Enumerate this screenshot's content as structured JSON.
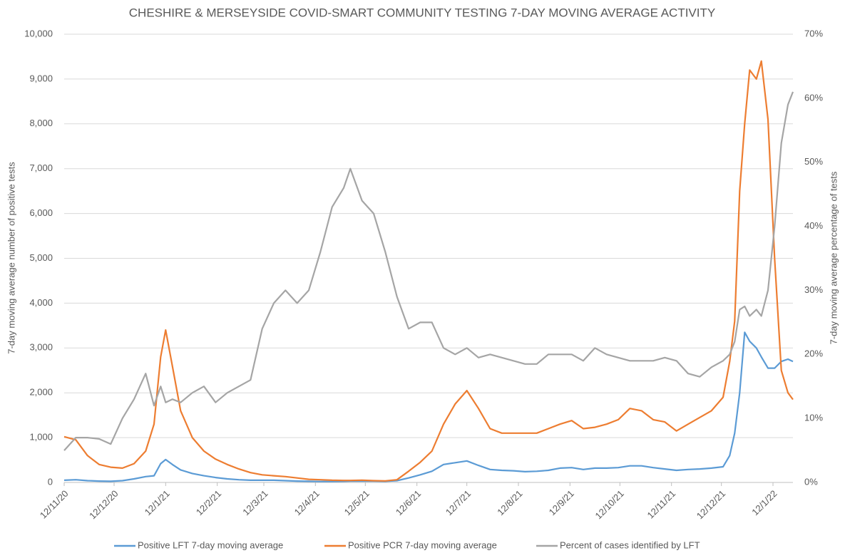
{
  "chart_data": {
    "type": "line",
    "title": "CHESHIRE & MERSEYSIDE COVID-SMART COMMUNITY TESTING 7-DAY MOVING AVERAGE ACTIVITY",
    "y_label": "7-day moving average number of positive tests",
    "y2_label": "7-day moving average percentage of tests",
    "x": [
      "12/11/20",
      "19/11/20",
      "26/11/20",
      "3/12/20",
      "10/12/20",
      "17/12/20",
      "24/12/20",
      "31/12/20",
      "5/1/21",
      "9/1/21",
      "12/1/21",
      "16/1/21",
      "21/1/21",
      "28/1/21",
      "4/2/21",
      "11/2/21",
      "18/2/21",
      "25/2/21",
      "4/3/21",
      "11/3/21",
      "18/3/21",
      "25/3/21",
      "1/4/21",
      "8/4/21",
      "15/4/21",
      "22/4/21",
      "29/4/21",
      "3/5/21",
      "10/5/21",
      "17/5/21",
      "24/5/21",
      "31/5/21",
      "7/6/21",
      "14/6/21",
      "21/6/21",
      "28/6/21",
      "5/7/21",
      "12/7/21",
      "19/7/21",
      "26/7/21",
      "2/8/21",
      "9/8/21",
      "16/8/21",
      "23/8/21",
      "30/8/21",
      "6/9/21",
      "13/9/21",
      "20/9/21",
      "27/9/21",
      "4/10/21",
      "11/10/21",
      "18/10/21",
      "25/10/21",
      "1/11/21",
      "8/11/21",
      "15/11/21",
      "22/11/21",
      "29/11/21",
      "6/12/21",
      "13/12/21",
      "17/12/21",
      "20/12/21",
      "23/12/21",
      "26/12/21",
      "29/12/21",
      "2/1/22",
      "5/1/22",
      "9/1/22",
      "13/1/22",
      "17/1/22",
      "21/1/22",
      "24/1/22"
    ],
    "xlim": [
      "12/11/20",
      "24/1/22"
    ],
    "xticks": [
      "12/11/20",
      "12/12/20",
      "12/1/21",
      "12/2/21",
      "12/3/21",
      "12/4/21",
      "12/5/21",
      "12/6/21",
      "12/7/21",
      "12/8/21",
      "12/9/21",
      "12/10/21",
      "12/11/21",
      "12/12/21",
      "12/1/22"
    ],
    "ylim": [
      0,
      10000
    ],
    "yticks": [
      0,
      {
        "value": 1000,
        "label": "1,000"
      },
      {
        "value": 2000,
        "label": "2,000"
      },
      {
        "value": 3000,
        "label": "3,000"
      },
      {
        "value": 4000,
        "label": "4,000"
      },
      {
        "value": 5000,
        "label": "5,000"
      },
      {
        "value": 6000,
        "label": "6,000"
      },
      {
        "value": 7000,
        "label": "7,000"
      },
      {
        "value": 8000,
        "label": "8,000"
      },
      {
        "value": 9000,
        "label": "9,000"
      },
      {
        "value": 10000,
        "label": "10,000"
      }
    ],
    "y2lim": [
      0,
      70
    ],
    "y2ticks": [
      {
        "value": 0,
        "label": "0%"
      },
      {
        "value": 10,
        "label": "10%"
      },
      {
        "value": 20,
        "label": "20%"
      },
      {
        "value": 30,
        "label": "30%"
      },
      {
        "value": 40,
        "label": "40%"
      },
      {
        "value": 50,
        "label": "50%"
      },
      {
        "value": 60,
        "label": "60%"
      },
      {
        "value": 70,
        "label": "70%"
      }
    ],
    "grid": true,
    "legend": "bottom",
    "series": [
      {
        "name": "Positive LFT 7-day moving average",
        "color": "#5b9bd5",
        "values": [
          50,
          60,
          40,
          30,
          25,
          40,
          80,
          130,
          150,
          420,
          510,
          400,
          280,
          200,
          150,
          110,
          80,
          60,
          50,
          50,
          50,
          40,
          30,
          25,
          20,
          20,
          25,
          30,
          30,
          30,
          25,
          40,
          100,
          170,
          250,
          400,
          440,
          480,
          380,
          290,
          270,
          260,
          240,
          250,
          270,
          320,
          330,
          290,
          320,
          320,
          330,
          370,
          370,
          330,
          300,
          270,
          290,
          300,
          320,
          350,
          600,
          1100,
          2000,
          3350,
          3150,
          3000,
          2800,
          2550,
          2550,
          2700,
          2750,
          2700
        ]
      },
      {
        "name": "Positive PCR 7-day moving average",
        "color": "#ed7d31",
        "values": [
          1020,
          950,
          600,
          400,
          340,
          320,
          420,
          700,
          1300,
          2800,
          3400,
          2600,
          1600,
          1000,
          700,
          520,
          400,
          300,
          220,
          170,
          150,
          130,
          100,
          70,
          60,
          50,
          45,
          45,
          50,
          40,
          35,
          60,
          250,
          450,
          700,
          1300,
          1750,
          2050,
          1650,
          1200,
          1100,
          1100,
          1100,
          1100,
          1200,
          1300,
          1380,
          1200,
          1230,
          1300,
          1400,
          1650,
          1600,
          1400,
          1350,
          1150,
          1300,
          1450,
          1600,
          1900,
          2700,
          3600,
          6500,
          8000,
          9200,
          9000,
          9400,
          8100,
          5000,
          2500,
          2000,
          1850
        ]
      },
      {
        "name": "Percent of cases identified by LFT",
        "color": "#a5a5a5",
        "axis": "y2",
        "values": [
          5,
          7,
          7,
          6.8,
          6,
          10,
          13,
          17,
          12,
          15,
          12.5,
          13,
          12.5,
          14,
          15,
          12.5,
          14,
          15,
          16,
          24,
          28,
          30,
          28,
          30,
          36,
          43,
          46,
          49,
          44,
          42,
          36,
          29,
          24,
          25,
          25,
          21,
          20,
          21,
          19.5,
          20,
          19.5,
          19,
          18.5,
          18.5,
          20,
          20,
          20,
          19,
          21,
          20,
          19.5,
          19,
          19,
          19,
          19.5,
          19,
          17,
          16.5,
          18,
          19,
          20,
          22,
          27,
          27.5,
          26,
          27,
          26,
          30,
          40,
          53,
          59,
          61
        ]
      }
    ]
  }
}
